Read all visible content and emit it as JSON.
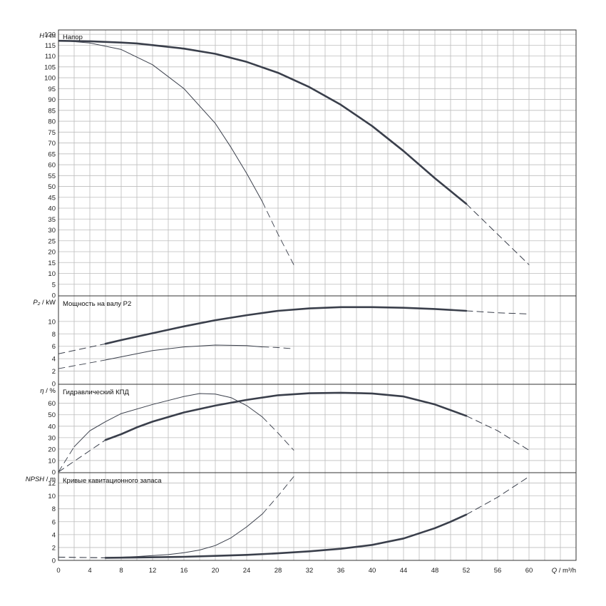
{
  "chart_data": {
    "type": "line",
    "x_axis": {
      "symbol": "Q",
      "unit": "m³/h",
      "range": [
        0,
        66
      ],
      "major_ticks": [
        0,
        4,
        8,
        12,
        16,
        20,
        24,
        28,
        32,
        36,
        40,
        44,
        48,
        52,
        56,
        60
      ],
      "grid_step": 2
    },
    "panels": [
      {
        "id": "head",
        "title": "Напор",
        "y_symbol": "H",
        "y_unit": "m",
        "ylim": [
          0,
          122
        ],
        "y_ticks": [
          0,
          5,
          10,
          15,
          20,
          25,
          30,
          35,
          40,
          45,
          50,
          55,
          60,
          65,
          70,
          75,
          80,
          85,
          90,
          95,
          100,
          105,
          110,
          115,
          120
        ],
        "grid": true,
        "series": [
          {
            "style": "thick",
            "color": "#3a3f4b",
            "solid": [
              [
                0,
                117
              ],
              [
                4,
                116.8
              ],
              [
                8,
                116.2
              ],
              [
                10,
                115.8
              ],
              [
                12,
                115
              ],
              [
                16,
                113.4
              ],
              [
                20,
                111
              ],
              [
                24,
                107.3
              ],
              [
                28,
                102.3
              ],
              [
                32,
                95.7
              ],
              [
                36,
                87.6
              ],
              [
                40,
                77.8
              ],
              [
                44,
                66.3
              ],
              [
                48,
                53.8
              ],
              [
                52,
                42
              ]
            ],
            "dashed": [
              [
                52,
                42
              ],
              [
                56,
                28
              ],
              [
                60,
                14
              ]
            ]
          },
          {
            "style": "thin",
            "color": "#3a3f4b",
            "solid": [
              [
                0,
                117.2
              ],
              [
                4,
                116
              ],
              [
                8,
                113
              ],
              [
                12,
                106
              ],
              [
                16,
                95
              ],
              [
                20,
                79
              ],
              [
                22,
                68
              ],
              [
                24,
                56
              ],
              [
                26,
                43
              ]
            ],
            "dashed": [
              [
                26,
                43
              ],
              [
                28,
                28
              ],
              [
                30,
                14
              ]
            ]
          }
        ]
      },
      {
        "id": "power",
        "title": "Мощность на валу P2",
        "y_symbol": "P₂",
        "y_unit": "kW",
        "ylim": [
          0,
          14
        ],
        "y_ticks": [
          0,
          2,
          4,
          6,
          8,
          10
        ],
        "grid": true,
        "series": [
          {
            "style": "thick",
            "color": "#3a3f4b",
            "dashed": [
              [
                0,
                4.8
              ],
              [
                6,
                6.4
              ]
            ],
            "solid": [
              [
                6,
                6.4
              ],
              [
                8,
                7
              ],
              [
                12,
                8.1
              ],
              [
                16,
                9.2
              ],
              [
                20,
                10.2
              ],
              [
                24,
                11
              ],
              [
                28,
                11.7
              ],
              [
                32,
                12.1
              ],
              [
                36,
                12.3
              ],
              [
                40,
                12.3
              ],
              [
                44,
                12.2
              ],
              [
                48,
                12
              ],
              [
                52,
                11.7
              ]
            ],
            "dashed2": [
              [
                52,
                11.7
              ],
              [
                56,
                11.4
              ],
              [
                60,
                11.2
              ]
            ]
          },
          {
            "style": "thin",
            "color": "#3a3f4b",
            "dashed": [
              [
                0,
                2.4
              ],
              [
                6,
                3.8
              ]
            ],
            "solid": [
              [
                6,
                3.8
              ],
              [
                8,
                4.3
              ],
              [
                12,
                5.3
              ],
              [
                16,
                5.9
              ],
              [
                20,
                6.2
              ],
              [
                24,
                6.1
              ],
              [
                26,
                5.9
              ]
            ],
            "dashed2": [
              [
                26,
                5.9
              ],
              [
                28,
                5.8
              ],
              [
                30,
                5.6
              ]
            ]
          }
        ]
      },
      {
        "id": "efficiency",
        "title": "Гидравлический КПД",
        "y_symbol": "η",
        "y_unit": "%",
        "ylim": [
          0,
          76
        ],
        "y_ticks": [
          0,
          10,
          20,
          30,
          40,
          50,
          60
        ],
        "grid": true,
        "series": [
          {
            "style": "thick",
            "color": "#3a3f4b",
            "dashed": [
              [
                0,
                0
              ],
              [
                6,
                28
              ]
            ],
            "solid": [
              [
                6,
                28
              ],
              [
                8,
                33
              ],
              [
                10,
                39
              ],
              [
                12,
                44
              ],
              [
                16,
                52
              ],
              [
                20,
                58
              ],
              [
                24,
                63
              ],
              [
                28,
                67
              ],
              [
                32,
                68.8
              ],
              [
                36,
                69.2
              ],
              [
                40,
                68.6
              ],
              [
                44,
                66
              ],
              [
                48,
                59
              ],
              [
                52,
                49
              ]
            ],
            "dashed2": [
              [
                52,
                49
              ],
              [
                56,
                36
              ],
              [
                60,
                19
              ]
            ]
          },
          {
            "style": "thin",
            "color": "#3a3f4b",
            "dashed": [
              [
                0,
                0
              ],
              [
                2,
                22
              ]
            ],
            "solid": [
              [
                2,
                22
              ],
              [
                4,
                36
              ],
              [
                6,
                44
              ],
              [
                8,
                51
              ],
              [
                12,
                59
              ],
              [
                16,
                66
              ],
              [
                18,
                68.5
              ],
              [
                20,
                68
              ],
              [
                22,
                65
              ],
              [
                24,
                58
              ],
              [
                26,
                48
              ]
            ],
            "dashed2": [
              [
                26,
                48
              ],
              [
                28,
                34
              ],
              [
                30,
                19
              ]
            ]
          }
        ]
      },
      {
        "id": "npsh",
        "title": "Кривые кавитационного запаса",
        "y_symbol": "NPSH",
        "y_unit": "m",
        "ylim": [
          0,
          13.5
        ],
        "y_ticks": [
          0,
          2,
          4,
          6,
          8,
          10,
          12
        ],
        "grid": true,
        "series": [
          {
            "style": "thick",
            "color": "#3a3f4b",
            "dashed": [
              [
                0,
                0.5
              ],
              [
                6,
                0.4
              ]
            ],
            "solid": [
              [
                6,
                0.4
              ],
              [
                10,
                0.45
              ],
              [
                16,
                0.55
              ],
              [
                20,
                0.7
              ],
              [
                24,
                0.85
              ],
              [
                28,
                1.1
              ],
              [
                32,
                1.4
              ],
              [
                36,
                1.8
              ],
              [
                40,
                2.4
              ],
              [
                44,
                3.4
              ],
              [
                48,
                5
              ],
              [
                50,
                6
              ],
              [
                52,
                7.1
              ]
            ],
            "dashed2": [
              [
                52,
                7.1
              ],
              [
                56,
                9.8
              ],
              [
                60,
                13
              ]
            ]
          },
          {
            "style": "thin",
            "color": "#3a3f4b",
            "dashed": [
              [
                0,
                0.5
              ],
              [
                6,
                0.4
              ]
            ],
            "solid": [
              [
                6,
                0.4
              ],
              [
                10,
                0.6
              ],
              [
                14,
                0.9
              ],
              [
                16,
                1.2
              ],
              [
                18,
                1.6
              ],
              [
                20,
                2.3
              ],
              [
                22,
                3.5
              ],
              [
                24,
                5.2
              ],
              [
                26,
                7.2
              ]
            ],
            "dashed2": [
              [
                26,
                7.2
              ],
              [
                28,
                10
              ],
              [
                30,
                13
              ]
            ]
          }
        ]
      }
    ]
  }
}
